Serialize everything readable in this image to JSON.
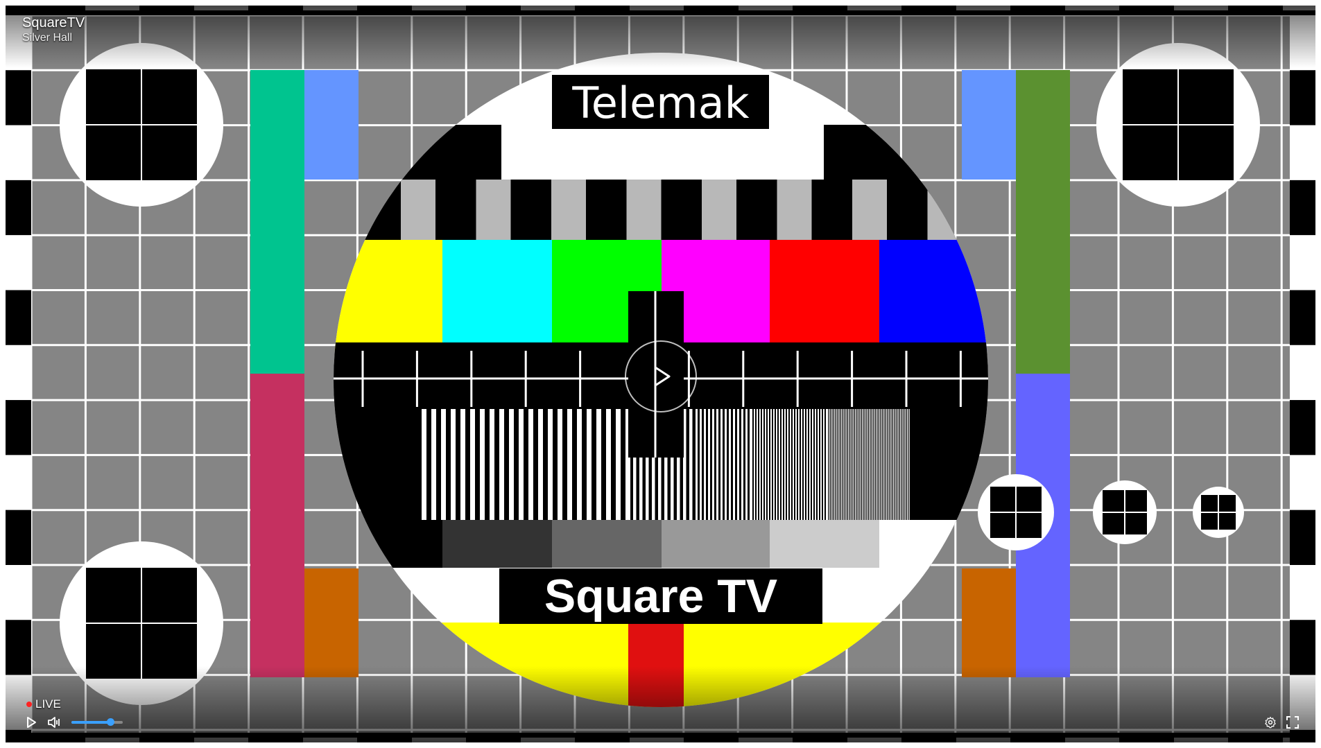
{
  "channel": {
    "title": "SquareTV",
    "subtitle": "Silver Hall"
  },
  "test_card": {
    "top_label": "Telemak",
    "bottom_label": "Square TV",
    "colors": {
      "bars": [
        "#ffff00",
        "#00ffff",
        "#00ff00",
        "#ff00ff",
        "#ff0000",
        "#0000ff"
      ],
      "left_col_top": "#00c48f",
      "left_col_bottom": "#c53060",
      "blue_light": "#6495ff",
      "orange": "#c86400",
      "right_col_top": "#5b9130",
      "right_col_bottom": "#6464ff",
      "grid_bg": "#858585"
    }
  },
  "status": {
    "live_label": "LIVE"
  },
  "controls": {
    "play": "play-icon",
    "mute": "volume-muted-icon",
    "settings": "gear-icon",
    "fullscreen": "fullscreen-icon",
    "volume_level": 0.75,
    "accent": "#3aa0ff"
  }
}
